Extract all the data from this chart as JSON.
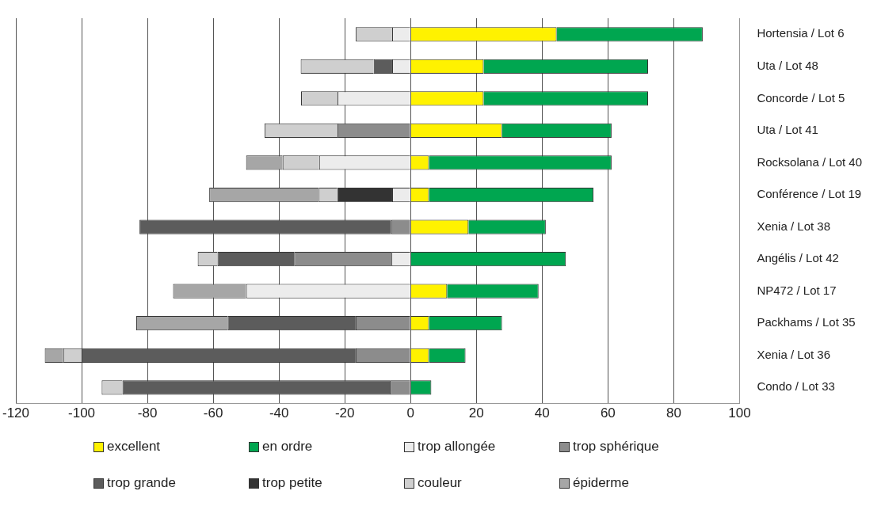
{
  "chart_data": {
    "type": "bar",
    "orientation": "horizontal",
    "stacked": true,
    "categories": [
      "Hortensia / Lot 6",
      "Uta / Lot 48",
      "Concorde / Lot 5",
      "Uta / Lot 41",
      "Rocksolana / Lot 40",
      "Conférence / Lot 19",
      "Xenia / Lot 38",
      "Angélis / Lot 42",
      "NP472 / Lot 17",
      "Packhams / Lot 35",
      "Xenia / Lot 36",
      "Condo / Lot 33"
    ],
    "series": [
      {
        "name": "excellent",
        "color": "#fff200",
        "values": [
          44.4,
          22.2,
          22.2,
          27.8,
          5.6,
          5.6,
          17.6,
          null,
          11.1,
          5.6,
          5.6,
          null
        ]
      },
      {
        "name": "en ordre",
        "color": "#00a650",
        "values": [
          44.4,
          50,
          50,
          33.3,
          55.5,
          50,
          23.5,
          47.2,
          27.8,
          22.2,
          11.1,
          6.3
        ]
      },
      {
        "name": "trop allongée",
        "color": "#ececec",
        "values": [
          -5.6,
          -5.6,
          -22.2,
          null,
          -27.8,
          -5.6,
          null,
          -5.8,
          -50,
          null,
          null,
          null
        ]
      },
      {
        "name": "trop sphérique",
        "color": "#8c8c8c",
        "values": [
          null,
          null,
          null,
          -22.2,
          null,
          null,
          -5.9,
          -29.6,
          null,
          -16.7,
          -16.7,
          -6.3
        ]
      },
      {
        "name": "trop grande",
        "color": "#5c5c5c",
        "values": [
          null,
          -5.6,
          null,
          null,
          null,
          null,
          -76.5,
          -23.3,
          null,
          -38.9,
          -83.3,
          -81.3
        ]
      },
      {
        "name": "trop petite",
        "color": "#333333",
        "values": [
          null,
          null,
          null,
          null,
          null,
          -16.7,
          null,
          null,
          null,
          null,
          null,
          null
        ]
      },
      {
        "name": "couleur",
        "color": "#cfcfcf",
        "values": [
          -11.1,
          -22.2,
          -11.1,
          -22.2,
          -11.1,
          -5.6,
          null,
          -6,
          null,
          null,
          -5.6,
          -6.3
        ]
      },
      {
        "name": "épiderme",
        "color": "#a6a6a6",
        "values": [
          null,
          null,
          null,
          null,
          -11.1,
          -33.3,
          null,
          null,
          -22.2,
          -27.8,
          -5.6,
          null
        ]
      }
    ],
    "xlim": [
      -120,
      100
    ],
    "xticks": [
      -120,
      -100,
      -80,
      -60,
      -40,
      -20,
      0,
      20,
      40,
      60,
      80,
      100
    ],
    "grid": "x",
    "legend": "bottom"
  }
}
